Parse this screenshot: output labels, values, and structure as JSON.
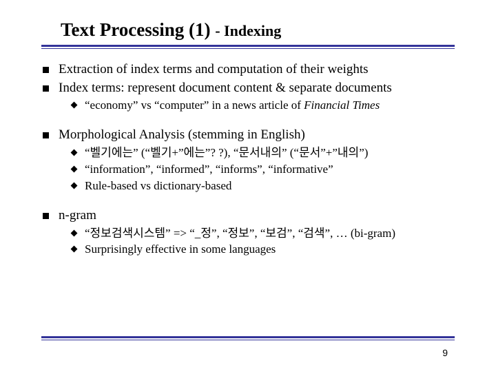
{
  "colors": {
    "rule": "#333399",
    "text": "#000000",
    "background": "#ffffff"
  },
  "fonts": {
    "body_family": "Times New Roman",
    "title_size_pt": 27,
    "subtitle_size_pt": 22,
    "level1_size_pt": 19,
    "level2_size_pt": 17
  },
  "title": {
    "main": "Text Processing (1) ",
    "sub": "- Indexing"
  },
  "bullets": {
    "b1": "Extraction of index terms and computation of their weights",
    "b2": "Index terms: represent document content & separate documents",
    "b2_1_pre": "“economy” vs “computer” in a news article of ",
    "b2_1_it": "Financial Times",
    "b3": "Morphological Analysis (stemming in English)",
    "b3_1": "“벨기에는” (“벨기+”에는”? ?), “문서내의” (“문서”+”내의”)",
    "b3_2": "“information”, “informed”, “informs”, “informative”",
    "b3_3": "Rule-based vs dictionary-based",
    "b4": "n-gram",
    "b4_1": "“정보검색시스템” => “_정”, “정보”, “보검”, “검색”, … (bi-gram)",
    "b4_2": "Surprisingly effective in some languages"
  },
  "page": "9"
}
